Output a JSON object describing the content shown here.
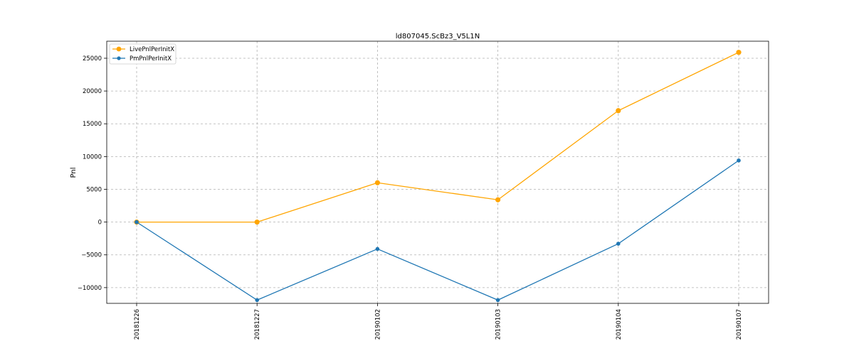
{
  "chart_data": {
    "type": "line",
    "title": "ld807045.ScBz3_V5L1N",
    "xlabel": "",
    "ylabel": "Pnl",
    "categories": [
      "20181226",
      "20181227",
      "20190102",
      "20190103",
      "20190104",
      "20190107"
    ],
    "ylim": [
      -12400,
      27600
    ],
    "yticks": [
      -10000,
      -5000,
      0,
      5000,
      10000,
      15000,
      20000,
      25000
    ],
    "ytick_labels": [
      "−10000",
      "−5000",
      "0",
      "5000",
      "10000",
      "15000",
      "20000",
      "25000"
    ],
    "grid": true,
    "legend_position": "top-left",
    "series": [
      {
        "name": "LivePnlPerInitX",
        "color": "#ffa500",
        "values": [
          0,
          0,
          6000,
          3400,
          17000,
          25900
        ]
      },
      {
        "name": "PmPnlPerInitX",
        "color": "#1f77b4",
        "values": [
          0,
          -11900,
          -4100,
          -11900,
          -3300,
          9400
        ]
      }
    ]
  }
}
